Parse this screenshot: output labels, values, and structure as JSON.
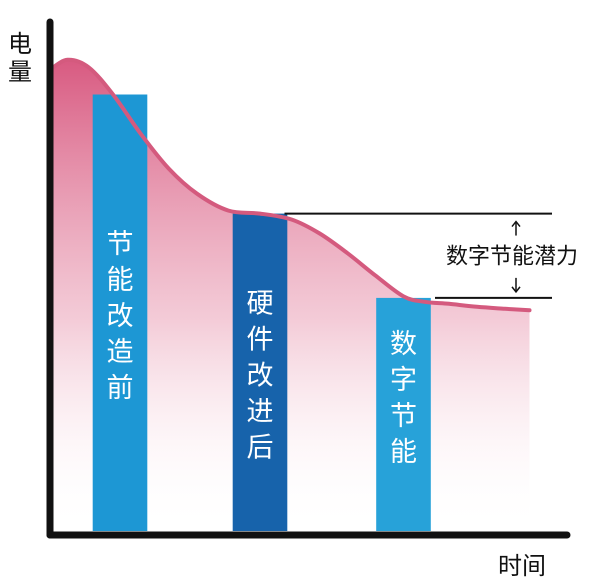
{
  "chart_data": {
    "type": "bar",
    "ylabel": "电量",
    "xlabel": "时间",
    "categories": [
      "节能改造前",
      "硬件改进后",
      "数字节能"
    ],
    "values": [
      88,
      64,
      47
    ],
    "curve": [
      [
        0,
        93
      ],
      [
        0.25,
        95
      ],
      [
        0.55,
        93.5
      ],
      [
        0.9,
        88
      ],
      [
        1.3,
        80
      ],
      [
        1.7,
        73
      ],
      [
        2.1,
        68
      ],
      [
        2.55,
        64.6
      ],
      [
        3,
        64
      ],
      [
        3.45,
        62.8
      ],
      [
        3.85,
        60
      ],
      [
        4.25,
        56
      ],
      [
        4.65,
        51.5
      ],
      [
        5.05,
        47.3
      ],
      [
        5.35,
        46.2
      ],
      [
        5.7,
        45.8
      ],
      [
        6.1,
        45.2
      ],
      [
        6.5,
        44.8
      ],
      [
        6.85,
        44.5
      ]
    ],
    "ylim": [
      0,
      100
    ],
    "xlim": [
      0,
      7.2
    ],
    "annotation": {
      "label": "数字节能潜力",
      "from": 64,
      "to": 47
    },
    "colors": {
      "bars": [
        "#1d97d4",
        "#1763ab",
        "#27a2d9"
      ],
      "curve": "#d45a7e",
      "axis": "#111111",
      "bar_text": "#ffffff"
    }
  }
}
